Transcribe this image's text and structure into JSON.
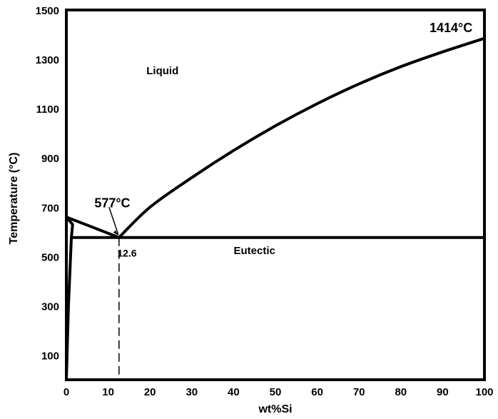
{
  "chart_data": {
    "type": "line",
    "title": "",
    "xlabel": "wt%Si",
    "ylabel": "Temperature (°C)",
    "xlim": [
      0,
      100
    ],
    "ylim": [
      0,
      1500
    ],
    "x_ticks": [
      0,
      10,
      20,
      30,
      40,
      50,
      60,
      70,
      80,
      90,
      100
    ],
    "y_ticks": [
      100,
      300,
      500,
      700,
      900,
      1100,
      1300,
      1500
    ],
    "grid": false,
    "series": [
      {
        "id": "liquidus_al",
        "x": [
          0,
          12.6
        ],
        "y": [
          660,
          577
        ]
      },
      {
        "id": "liquidus_si",
        "x": [
          12.6,
          20,
          30,
          40,
          50,
          60,
          70,
          80,
          90,
          100
        ],
        "y": [
          577,
          700,
          820,
          930,
          1030,
          1120,
          1200,
          1270,
          1330,
          1385
        ]
      },
      {
        "id": "eutectic_line",
        "x": [
          1.5,
          100
        ],
        "y": [
          577,
          577
        ]
      },
      {
        "id": "solvus",
        "x": [
          0,
          1.5,
          1.2,
          0.5,
          0
        ],
        "y": [
          660,
          630,
          577,
          300,
          0
        ]
      }
    ],
    "annotations": [
      {
        "id": "si_melting",
        "text": "1414°C",
        "x": 92,
        "y": 1410
      },
      {
        "id": "eutectic_temp",
        "text": "577°C",
        "x": 11,
        "y": 700
      },
      {
        "id": "eutectic_comp",
        "text": "12.6",
        "x": 14.5,
        "y": 500
      },
      {
        "id": "eutectic_region",
        "text": "Eutectic",
        "x": 45,
        "y": 510
      },
      {
        "id": "liquid_region",
        "text": "Liquid",
        "x": 23,
        "y": 1240
      }
    ],
    "reference_line": {
      "x": 12.6,
      "style": "dashed"
    }
  }
}
